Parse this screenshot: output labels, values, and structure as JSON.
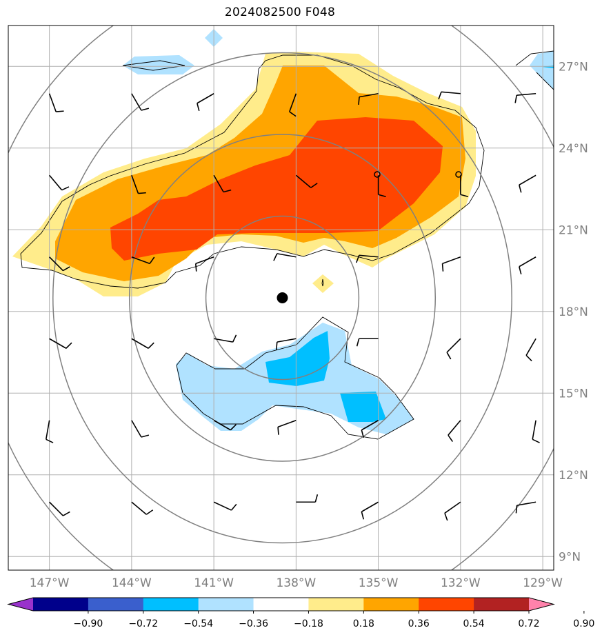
{
  "title": "2024082500 F048",
  "lon_labels": [
    "147°W",
    "144°W",
    "141°W",
    "138°W",
    "135°W",
    "132°W",
    "129°W"
  ],
  "lat_labels": [
    "27°N",
    "24°N",
    "21°N",
    "18°N",
    "15°N",
    "12°N",
    "9°N"
  ],
  "colorbar": {
    "colors": [
      "#9932cc",
      "#00008b",
      "#3a5fcd",
      "#00bfff",
      "#b0e2ff",
      "#ffffff",
      "#ffec8b",
      "#ffa500",
      "#ff4500",
      "#b22222",
      "#ff82ab"
    ],
    "ticks": [
      "−0.90",
      "−0.72",
      "−0.54",
      "−0.36",
      "−0.18",
      "0.18",
      "0.36",
      "0.54",
      "0.72",
      "0.90"
    ]
  },
  "map": {
    "extent": {
      "lon_min": -148.5,
      "lon_max": -128.6,
      "lat_min": 8.5,
      "lat_max": 28.5
    },
    "gridlines": true,
    "storm_center": {
      "lon": -138.5,
      "lat": 18.5
    },
    "range_rings_deg": [
      3,
      6,
      9,
      12
    ]
  }
}
